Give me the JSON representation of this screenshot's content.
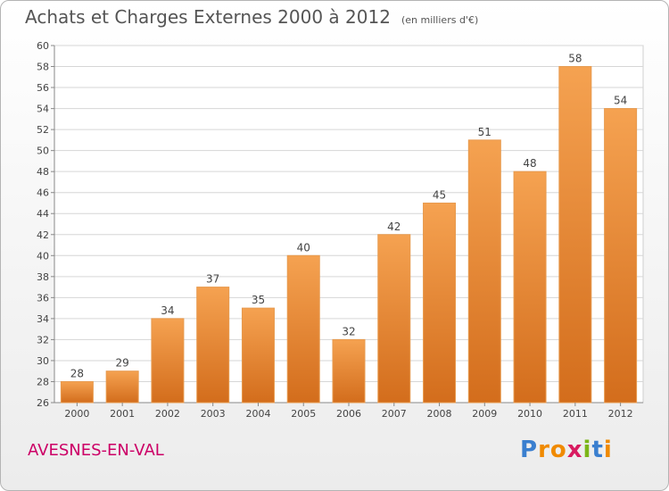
{
  "title": "Achats et Charges Externes 2000 à 2012",
  "unit": "(en milliers d'€)",
  "region": "AVESNES-EN-VAL",
  "logo": {
    "text": "Proxiti",
    "letters": [
      "P",
      "r",
      "o",
      "x",
      "i",
      "t",
      "i"
    ]
  },
  "colors": {
    "bar_top": "#f5a251",
    "bar_bottom": "#d36d1c",
    "region": "#cc0066",
    "logo_letters": [
      "#3a7fcf",
      "#f08a00",
      "#f08a00",
      "#d81b60",
      "#7cb518",
      "#3a7fcf",
      "#f08a00"
    ]
  },
  "chart_data": {
    "type": "bar",
    "categories": [
      "2000",
      "2001",
      "2002",
      "2003",
      "2004",
      "2005",
      "2006",
      "2007",
      "2008",
      "2009",
      "2010",
      "2011",
      "2012"
    ],
    "values": [
      28,
      29,
      34,
      37,
      35,
      40,
      32,
      42,
      45,
      51,
      48,
      58,
      54
    ],
    "ylim": [
      26,
      60
    ],
    "yticks": [
      26,
      28,
      30,
      32,
      34,
      36,
      38,
      40,
      42,
      44,
      46,
      48,
      50,
      52,
      54,
      56,
      58,
      60
    ],
    "grid": true
  }
}
